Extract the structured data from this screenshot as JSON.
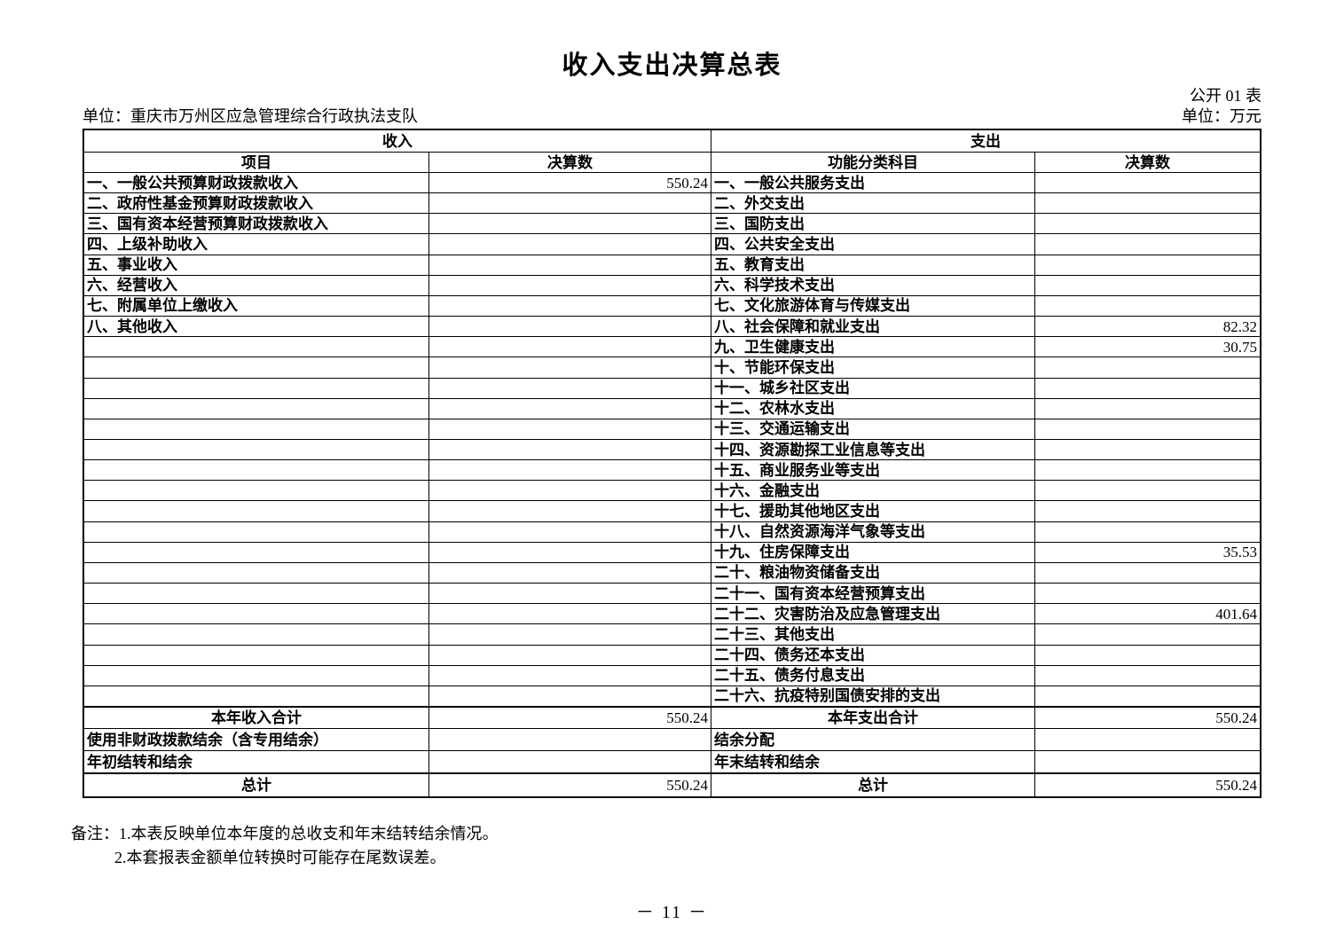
{
  "page": {
    "title": "收入支出决算总表",
    "table_code": "公开 01 表",
    "unit_label": "单位：重庆市万州区应急管理综合行政执法支队",
    "currency_label": "单位：万元",
    "page_number": "－ 11 －"
  },
  "colors": {
    "text": "#000000",
    "border": "#000000",
    "background": "#ffffff"
  },
  "table": {
    "revenue_header": "收入",
    "expenditure_header": "支出",
    "columns": {
      "revenue_item": "项目",
      "revenue_amount": "决算数",
      "expenditure_category": "功能分类科目",
      "expenditure_amount": "决算数"
    },
    "rows": [
      {
        "income": "一、一般公共预算财政拨款收入",
        "income_value": "550.24",
        "expense": "一、一般公共服务支出",
        "expense_value": ""
      },
      {
        "income": "二、政府性基金预算财政拨款收入",
        "income_value": "",
        "expense": "二、外交支出",
        "expense_value": ""
      },
      {
        "income": "三、国有资本经营预算财政拨款收入",
        "income_value": "",
        "expense": "三、国防支出",
        "expense_value": ""
      },
      {
        "income": "四、上级补助收入",
        "income_value": "",
        "expense": "四、公共安全支出",
        "expense_value": ""
      },
      {
        "income": "五、事业收入",
        "income_value": "",
        "expense": "五、教育支出",
        "expense_value": ""
      },
      {
        "income": "六、经营收入",
        "income_value": "",
        "expense": "六、科学技术支出",
        "expense_value": ""
      },
      {
        "income": "七、附属单位上缴收入",
        "income_value": "",
        "expense": "七、文化旅游体育与传媒支出",
        "expense_value": ""
      },
      {
        "income": "八、其他收入",
        "income_value": "",
        "expense": "八、社会保障和就业支出",
        "expense_value": "82.32"
      },
      {
        "income": "",
        "income_value": "",
        "expense": "九、卫生健康支出",
        "expense_value": "30.75"
      },
      {
        "income": "",
        "income_value": "",
        "expense": "十、节能环保支出",
        "expense_value": ""
      },
      {
        "income": "",
        "income_value": "",
        "expense": "十一、城乡社区支出",
        "expense_value": ""
      },
      {
        "income": "",
        "income_value": "",
        "expense": "十二、农林水支出",
        "expense_value": ""
      },
      {
        "income": "",
        "income_value": "",
        "expense": "十三、交通运输支出",
        "expense_value": ""
      },
      {
        "income": "",
        "income_value": "",
        "expense": "十四、资源勘探工业信息等支出",
        "expense_value": ""
      },
      {
        "income": "",
        "income_value": "",
        "expense": "十五、商业服务业等支出",
        "expense_value": ""
      },
      {
        "income": "",
        "income_value": "",
        "expense": "十六、金融支出",
        "expense_value": ""
      },
      {
        "income": "",
        "income_value": "",
        "expense": "十七、援助其他地区支出",
        "expense_value": ""
      },
      {
        "income": "",
        "income_value": "",
        "expense": "十八、自然资源海洋气象等支出",
        "expense_value": ""
      },
      {
        "income": "",
        "income_value": "",
        "expense": "十九、住房保障支出",
        "expense_value": "35.53"
      },
      {
        "income": "",
        "income_value": "",
        "expense": "二十、粮油物资储备支出",
        "expense_value": ""
      },
      {
        "income": "",
        "income_value": "",
        "expense": "二十一、国有资本经营预算支出",
        "expense_value": ""
      },
      {
        "income": "",
        "income_value": "",
        "expense": "二十二、灾害防治及应急管理支出",
        "expense_value": "401.64"
      },
      {
        "income": "",
        "income_value": "",
        "expense": "二十三、其他支出",
        "expense_value": ""
      },
      {
        "income": "",
        "income_value": "",
        "expense": "二十四、债务还本支出",
        "expense_value": ""
      },
      {
        "income": "",
        "income_value": "",
        "expense": "二十五、债务付息支出",
        "expense_value": ""
      },
      {
        "income": "",
        "income_value": "",
        "expense": "二十六、抗疫特别国债安排的支出",
        "expense_value": ""
      }
    ],
    "summary_rows": [
      {
        "income": "本年收入合计",
        "income_value": "550.24",
        "expense": "本年支出合计",
        "expense_value": "550.24"
      },
      {
        "income": "使用非财政拨款结余（含专用结余）",
        "income_value": "",
        "expense": "结余分配",
        "expense_value": ""
      },
      {
        "income": "年初结转和结余",
        "income_value": "",
        "expense": "年末结转和结余",
        "expense_value": ""
      },
      {
        "income": "总计",
        "income_value": "550.24",
        "expense": "总计",
        "expense_value": "550.24"
      }
    ]
  },
  "footnotes": {
    "line1": "备注：1.本表反映单位本年度的总收支和年末结转结余情况。",
    "line2": "2.本套报表金额单位转换时可能存在尾数误差。"
  }
}
